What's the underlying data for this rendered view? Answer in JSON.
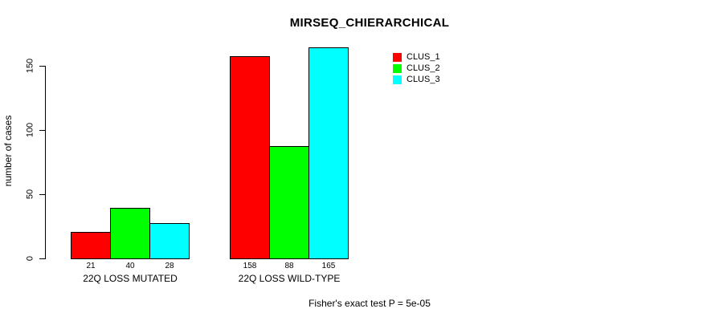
{
  "chart_data": {
    "type": "bar",
    "title": "MIRSEQ_CHIERARCHICAL",
    "xlabel": "",
    "ylabel": "number of cases",
    "ylim": [
      0,
      165
    ],
    "yticks": [
      0,
      50,
      100,
      150
    ],
    "grid": false,
    "legend_position": "top-right",
    "categories": [
      "22Q LOSS MUTATED",
      "22Q LOSS WILD-TYPE"
    ],
    "series": [
      {
        "name": "CLUS_1",
        "color": "#ff0000",
        "values": [
          21,
          158
        ]
      },
      {
        "name": "CLUS_2",
        "color": "#00ff00",
        "values": [
          40,
          88
        ]
      },
      {
        "name": "CLUS_3",
        "color": "#00ffff",
        "values": [
          28,
          165
        ]
      }
    ],
    "bar_value_labels": true,
    "annotation": "Fisher's exact test P = 5e-05"
  }
}
